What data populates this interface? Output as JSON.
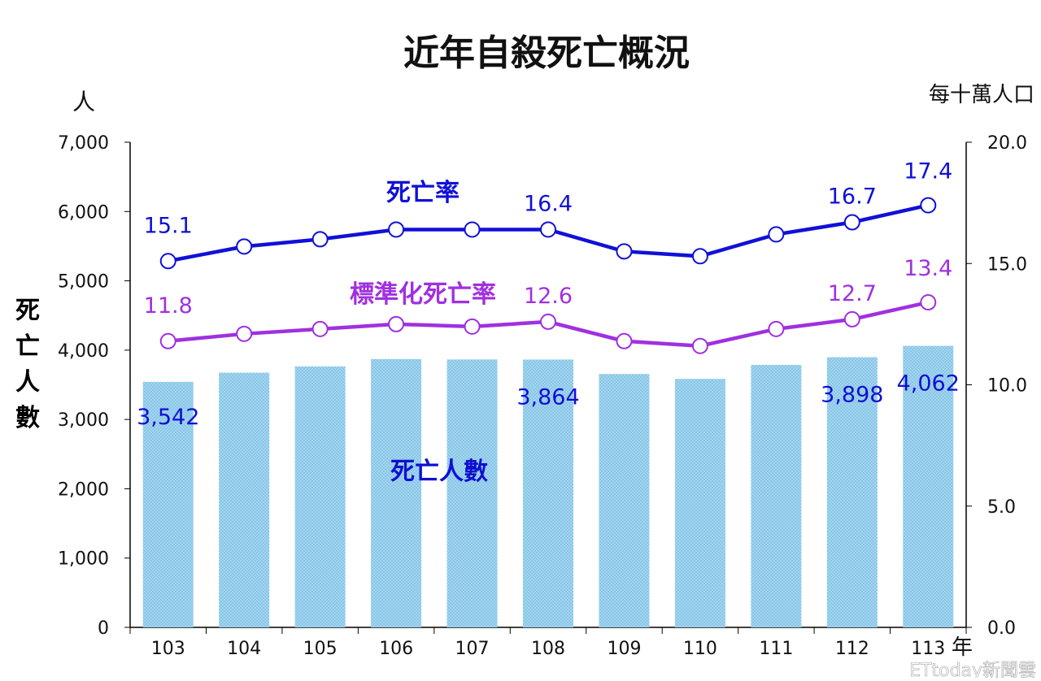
{
  "chart_data": {
    "type": "bar+line",
    "title": "近年自殺死亡概況",
    "left_unit": "人",
    "right_unit": "每十萬人口",
    "ylabel": "死亡人數",
    "xlabel_unit": "年",
    "categories": [
      "103",
      "104",
      "105",
      "106",
      "107",
      "108",
      "109",
      "110",
      "111",
      "112",
      "113"
    ],
    "left_ylim": [
      0,
      7000
    ],
    "left_ticks": [
      "0",
      "1,000",
      "2,000",
      "3,000",
      "4,000",
      "5,000",
      "6,000",
      "7,000"
    ],
    "right_ylim": [
      0,
      20
    ],
    "right_ticks": [
      "0.0",
      "5.0",
      "10.0",
      "15.0",
      "20.0"
    ],
    "series": [
      {
        "name": "死亡人數",
        "type": "bar",
        "axis": "left",
        "color": "#9fd4ee",
        "values": [
          3542,
          3675,
          3765,
          3871,
          3865,
          3864,
          3656,
          3585,
          3787,
          3898,
          4062
        ],
        "labels": {
          "0": "3,542",
          "5": "3,864",
          "9": "3,898",
          "10": "4,062"
        }
      },
      {
        "name": "死亡率",
        "type": "line",
        "axis": "right",
        "color": "#1010d8",
        "values": [
          15.1,
          15.7,
          16.0,
          16.4,
          16.4,
          16.4,
          15.5,
          15.3,
          16.2,
          16.7,
          17.4
        ],
        "labels": {
          "0": "15.1",
          "5": "16.4",
          "9": "16.7",
          "10": "17.4"
        }
      },
      {
        "name": "標準化死亡率",
        "type": "line",
        "axis": "right",
        "color": "#a030e0",
        "values": [
          11.8,
          12.1,
          12.3,
          12.5,
          12.4,
          12.6,
          11.8,
          11.6,
          12.3,
          12.7,
          13.4
        ],
        "labels": {
          "0": "11.8",
          "5": "12.6",
          "9": "12.7",
          "10": "13.4"
        }
      }
    ]
  },
  "watermark": "ETtoday新聞雲"
}
